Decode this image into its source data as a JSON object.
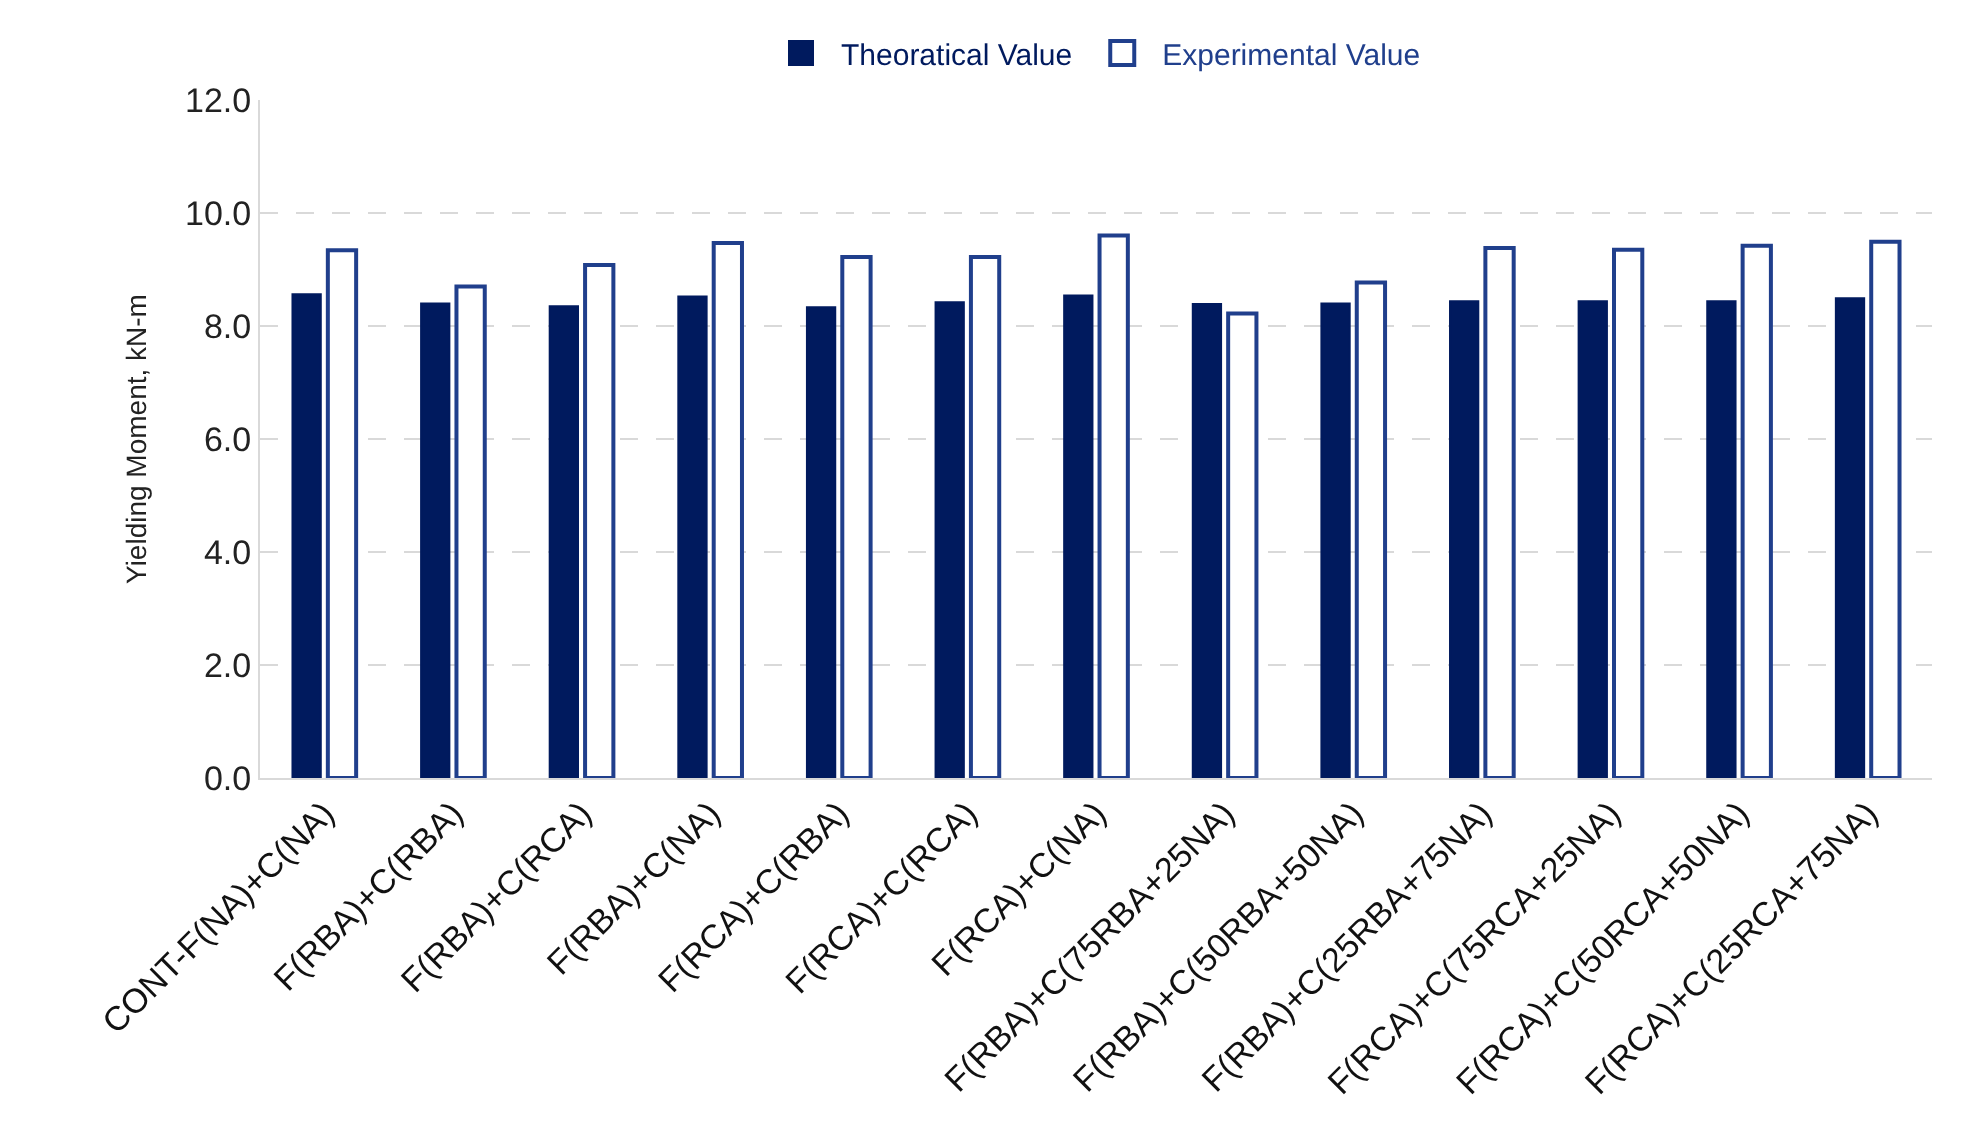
{
  "chart_data": {
    "type": "bar",
    "ylabel": "Yielding Moment, kN-m",
    "categories": [
      "CONT-F(NA)+C(NA)",
      "F(RBA)+C(RBA)",
      "F(RBA)+C(RCA)",
      "F(RBA)+C(NA)",
      "F(RCA)+C(RBA)",
      "F(RCA)+C(RCA)",
      "F(RCA)+C(NA)",
      "F(RBA)+C(75RBA+25NA)",
      "F(RBA)+C(50RBA+50NA)",
      "F(RBA)+C(25RBA+75NA)",
      "F(RCA)+C(75RCA+25NA)",
      "F(RCA)+C(50RCA+50NA)",
      "F(RCA)+C(25RCA+75NA)"
    ],
    "series": [
      {
        "name": "Theoratical Value",
        "color": "#001a5e",
        "values": [
          8.56,
          8.4,
          8.35,
          8.52,
          8.33,
          8.42,
          8.54,
          8.39,
          8.4,
          8.44,
          8.44,
          8.44,
          8.49
        ]
      },
      {
        "name": "Experimental Value",
        "color": "#203f8c",
        "values": [
          9.34,
          8.7,
          9.08,
          9.47,
          9.22,
          9.22,
          9.6,
          8.22,
          8.77,
          9.38,
          9.35,
          9.42,
          9.49
        ]
      }
    ],
    "ylim": [
      0,
      12
    ],
    "yticks": [
      {
        "value": 0,
        "label": "0.0"
      },
      {
        "value": 2,
        "label": "2.0"
      },
      {
        "value": 4,
        "label": "4.0"
      },
      {
        "value": 6,
        "label": "6.0"
      },
      {
        "value": 8,
        "label": "8.0"
      },
      {
        "value": 10,
        "label": "10.0"
      },
      {
        "value": 12,
        "label": "12.0"
      }
    ],
    "grid": "y",
    "legend": "top"
  }
}
